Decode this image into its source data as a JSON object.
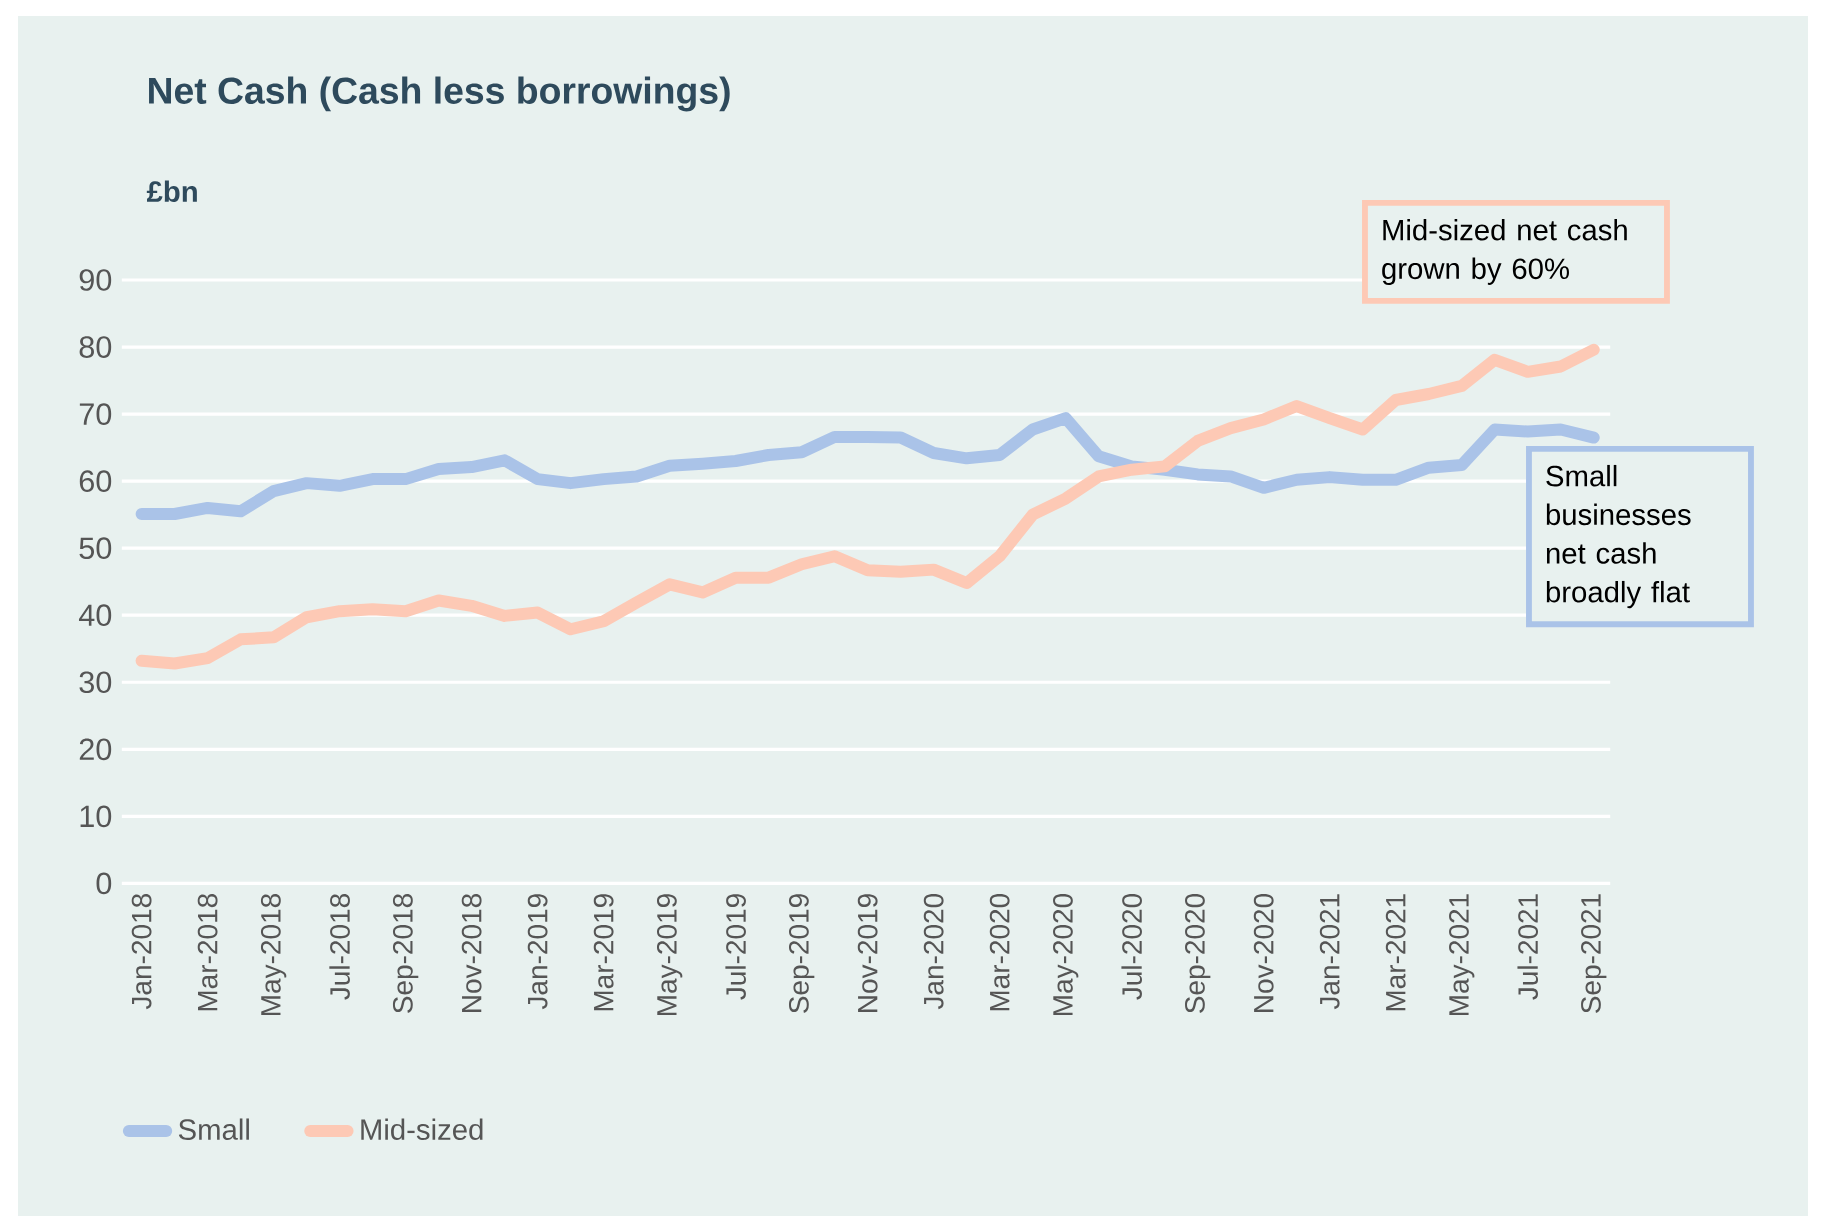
{
  "chart_data": {
    "type": "line",
    "title": "Net Cash (Cash less borrowings)",
    "ylabel": "£bn",
    "categories": [
      "Jan-2018",
      null,
      "Mar-2018",
      null,
      "May-2018",
      null,
      "Jul-2018",
      null,
      "Sep-2018",
      null,
      "Nov-2018",
      null,
      "Jan-2019",
      null,
      "Mar-2019",
      null,
      "May-2019",
      null,
      "Jul-2019",
      null,
      "Sep-2019",
      null,
      "Nov-2019",
      null,
      "Jan-2020",
      null,
      "Mar-2020",
      null,
      "May-2020",
      null,
      "Jul-2020",
      null,
      "Sep-2020",
      null,
      "Nov-2020",
      null,
      "Jan-2021",
      null,
      "Mar-2021",
      null,
      "May-2021",
      null,
      "Jul-2021",
      null,
      "Sep-2021"
    ],
    "series": [
      {
        "name": "Small",
        "color": "#aac3e8",
        "values": [
          55.1,
          55.1,
          56.0,
          55.5,
          58.5,
          59.7,
          59.3,
          60.3,
          60.3,
          61.8,
          62.1,
          63.1,
          60.3,
          59.7,
          60.3,
          60.7,
          62.3,
          62.6,
          63.0,
          63.9,
          64.3,
          66.6,
          66.6,
          66.5,
          64.2,
          63.4,
          63.9,
          67.7,
          69.4,
          63.7,
          62.2,
          61.7,
          61.0,
          60.7,
          59.0,
          60.2,
          60.6,
          60.2,
          60.2,
          62.0,
          62.4,
          67.7,
          67.4,
          67.7,
          66.5
        ]
      },
      {
        "name": "Mid-sized",
        "color": "#fdc9b5",
        "values": [
          33.2,
          32.8,
          33.6,
          36.4,
          36.7,
          39.7,
          40.6,
          40.9,
          40.6,
          42.2,
          41.4,
          39.9,
          40.4,
          37.9,
          39.1,
          41.9,
          44.6,
          43.4,
          45.6,
          45.6,
          47.6,
          48.8,
          46.7,
          46.5,
          46.8,
          44.8,
          48.8,
          55.0,
          57.4,
          60.7,
          61.7,
          62.2,
          66.0,
          67.9,
          69.2,
          71.2,
          69.4,
          67.7,
          72.1,
          73.0,
          74.2,
          78.1,
          76.3,
          77.1,
          79.6
        ]
      }
    ],
    "ylim": [
      0,
      90
    ],
    "yticks": [
      0,
      10,
      20,
      30,
      40,
      50,
      60,
      70,
      80,
      90
    ],
    "grid": "y",
    "legend": "bottom left",
    "marker": "none",
    "line_style": "solid",
    "annotations": [
      "Mid-sized net cash grown by 60%",
      "Small businesses net cash broadly flat"
    ]
  }
}
